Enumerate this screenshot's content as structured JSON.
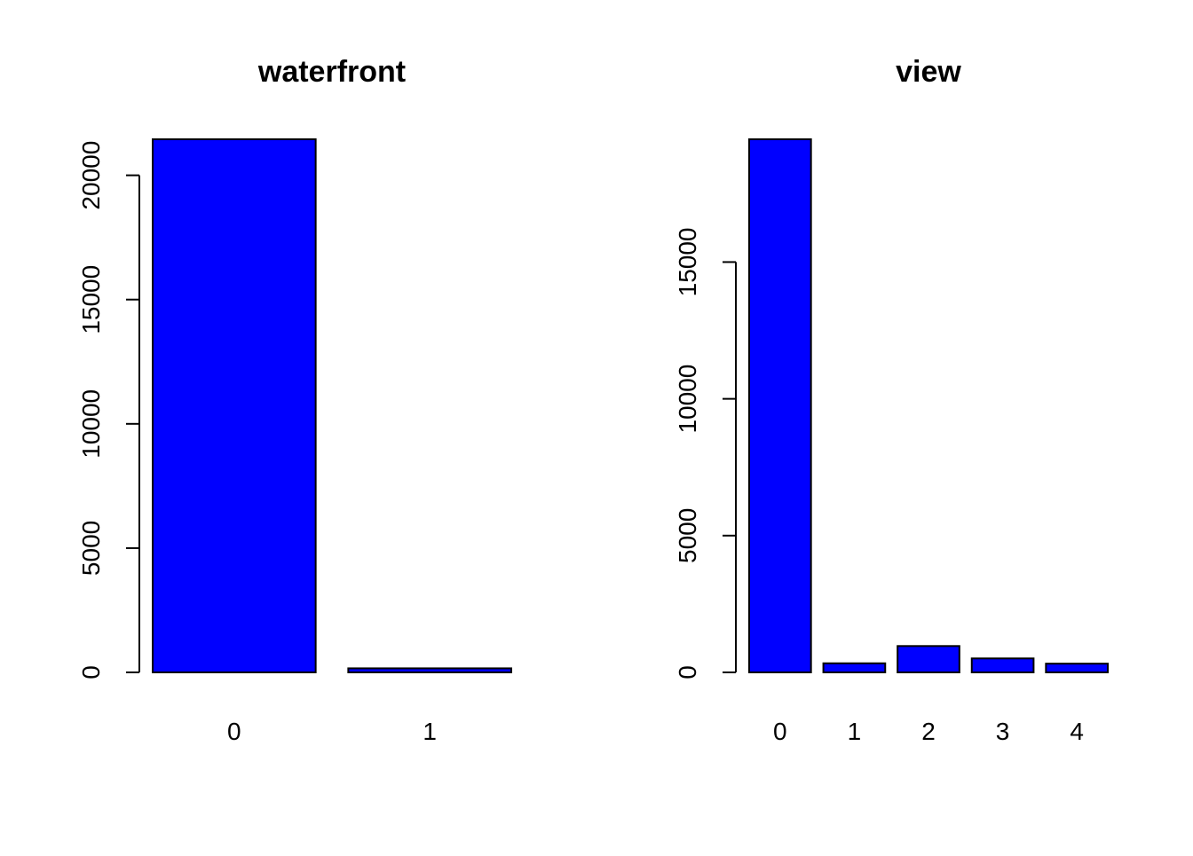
{
  "chart_data": [
    {
      "type": "bar",
      "title": "waterfront",
      "xlabel": "",
      "ylabel": "",
      "categories": [
        "0",
        "1"
      ],
      "values": [
        21450,
        163
      ],
      "ylim": [
        0,
        21450
      ],
      "yticks": [
        0,
        5000,
        10000,
        15000,
        20000
      ],
      "bar_color": "#0000ff",
      "border_color": "#000000",
      "grid": false,
      "legend": "none"
    },
    {
      "type": "bar",
      "title": "view",
      "xlabel": "",
      "ylabel": "",
      "categories": [
        "0",
        "1",
        "2",
        "3",
        "4"
      ],
      "values": [
        19489,
        332,
        963,
        510,
        319
      ],
      "ylim": [
        0,
        19489
      ],
      "yticks": [
        0,
        5000,
        10000,
        15000
      ],
      "bar_color": "#0000ff",
      "border_color": "#000000",
      "grid": false,
      "legend": "none"
    }
  ]
}
